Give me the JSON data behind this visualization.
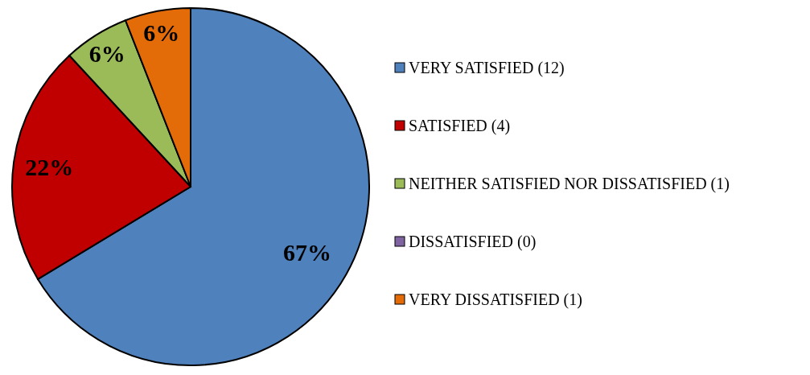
{
  "chart_data": {
    "type": "pie",
    "categories": [
      "VERY SATISFIED (12)",
      "SATISFIED (4)",
      "NEITHER SATISFIED NOR DISSATISFIED (1)",
      "DISSATISFIED (0)",
      "VERY DISSATISFIED (1)"
    ],
    "values": [
      67,
      22,
      6,
      0,
      6
    ],
    "value_labels": [
      "67%",
      "22%",
      "6%",
      null,
      "6%"
    ],
    "colors": [
      "#4f81bd",
      "#c00000",
      "#9bbb59",
      "#8064a2",
      "#e36c09"
    ],
    "legend": "right"
  }
}
